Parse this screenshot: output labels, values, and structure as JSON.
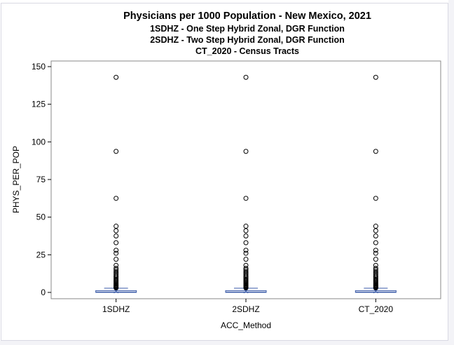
{
  "titles": {
    "main": "Physicians per 1000 Population - New Mexico, 2021",
    "line2": "1SDHZ - One Step Hybrid Zonal, DGR Function",
    "line3": "2SDHZ - Two Step Hybrid Zonal, DGR Function",
    "line4": "CT_2020 - Census Tracts"
  },
  "chart_data": {
    "type": "box",
    "title": "Physicians per 1000 Population - New Mexico, 2021",
    "xlabel": "ACC_Method",
    "ylabel": "PHYS_PER_POP",
    "ylim": [
      0,
      150
    ],
    "yticks": [
      0,
      25,
      50,
      75,
      100,
      125,
      150
    ],
    "categories": [
      "1SDHZ",
      "2SDHZ",
      "CT_2020"
    ],
    "colors": {
      "box": "#3b5ba9",
      "outlier": "#000000",
      "axis": "#000000"
    },
    "boxes": [
      {
        "name": "1SDHZ",
        "whisker_low": 0,
        "q1": 0,
        "median": 0.3,
        "mean": 0.9,
        "q3": 1.2,
        "whisker_high": 2.8,
        "outliers": [
          3.0,
          3.3,
          3.6,
          4.0,
          4.4,
          4.8,
          5.2,
          5.7,
          6.2,
          6.8,
          7.4,
          8.0,
          8.7,
          9.4,
          10.2,
          11.0,
          12.0,
          13.0,
          14.0,
          15.0,
          16.0,
          18.0,
          22.0,
          26.0,
          28.0,
          33.0,
          37.5,
          41.0,
          44.0,
          62.5,
          93.7,
          142.9
        ]
      },
      {
        "name": "2SDHZ",
        "whisker_low": 0,
        "q1": 0,
        "median": 0.3,
        "mean": 0.9,
        "q3": 1.2,
        "whisker_high": 2.8,
        "outliers": [
          3.0,
          3.3,
          3.6,
          4.0,
          4.4,
          4.8,
          5.2,
          5.7,
          6.2,
          6.8,
          7.4,
          8.0,
          8.7,
          9.4,
          10.2,
          11.0,
          12.0,
          13.0,
          14.0,
          15.0,
          16.0,
          18.0,
          22.0,
          26.0,
          28.0,
          33.0,
          37.5,
          41.0,
          44.0,
          62.5,
          93.7,
          142.9
        ]
      },
      {
        "name": "CT_2020",
        "whisker_low": 0,
        "q1": 0,
        "median": 0.3,
        "mean": 0.9,
        "q3": 1.2,
        "whisker_high": 2.8,
        "outliers": [
          3.0,
          3.3,
          3.6,
          4.0,
          4.4,
          4.8,
          5.2,
          5.7,
          6.2,
          6.8,
          7.4,
          8.0,
          8.7,
          9.4,
          10.2,
          11.0,
          12.0,
          13.0,
          14.0,
          15.0,
          16.0,
          18.0,
          22.0,
          26.0,
          28.0,
          33.0,
          37.5,
          41.0,
          44.0,
          62.5,
          93.7,
          142.9
        ]
      }
    ]
  }
}
